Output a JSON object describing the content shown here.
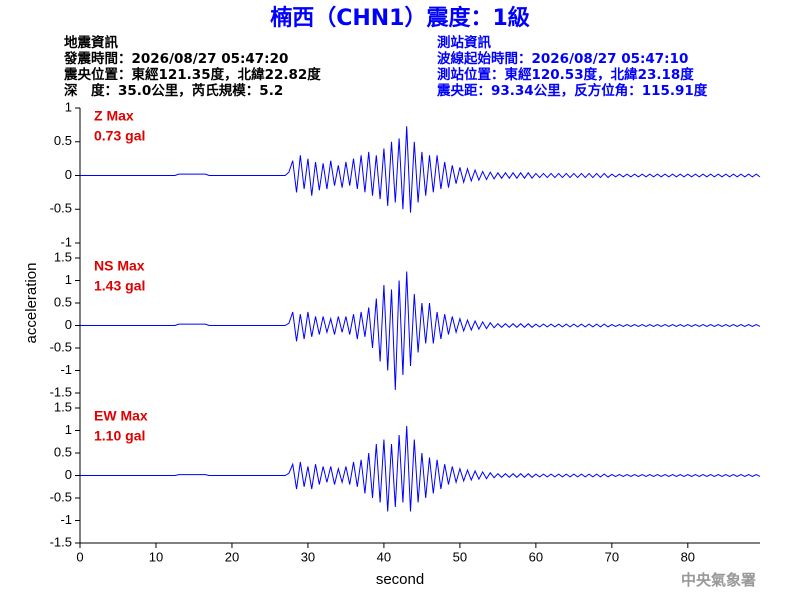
{
  "header": {
    "title": "楠西（CHN1）震度：1級",
    "event_info": [
      "地震資訊",
      "發震時間：2026/08/27 05:47:20",
      "震央位置：東經121.35度，北緯22.82度",
      "深　度：35.0公里，芮氏規模：5.2"
    ],
    "station_info": [
      "測站資訊",
      "波線起始時間：2026/08/27 05:47:10",
      "測站位置：東經120.53度，北緯23.18度",
      "震央距：93.34公里，反方位角：115.91度"
    ],
    "footer": "中央氣象署"
  },
  "chart_data": [
    {
      "type": "line",
      "annotations": [
        "Z Max",
        "0.73 gal"
      ],
      "color": "#0000ff",
      "xlim": [
        0,
        89.5
      ],
      "ylim": [
        -1,
        1
      ],
      "yticks": [
        -1,
        -0.5,
        0,
        0.5,
        1
      ],
      "x": [
        0,
        0.5,
        1,
        1.5,
        2,
        2.5,
        3,
        3.5,
        4,
        4.5,
        5,
        5.5,
        6,
        6.5,
        7,
        7.5,
        8,
        8.5,
        9,
        9.5,
        10,
        10.5,
        11,
        11.5,
        12,
        12.5,
        13,
        13.5,
        14,
        14.5,
        15,
        15.5,
        16,
        16.5,
        17,
        17.5,
        18,
        18.5,
        19,
        19.5,
        20,
        20.5,
        21,
        21.5,
        22,
        22.5,
        23,
        23.5,
        24,
        24.5,
        25,
        25.5,
        26,
        26.5,
        27,
        27.5,
        28,
        28.5,
        29,
        29.5,
        30,
        30.5,
        31,
        31.5,
        32,
        32.5,
        33,
        33.5,
        34,
        34.5,
        35,
        35.5,
        36,
        36.5,
        37,
        37.5,
        38,
        38.5,
        39,
        39.5,
        40,
        40.5,
        41,
        41.5,
        42,
        42.5,
        43,
        43.5,
        44,
        44.5,
        45,
        45.5,
        46,
        46.5,
        47,
        47.5,
        48,
        48.5,
        49,
        49.5,
        50,
        50.5,
        51,
        51.5,
        52,
        52.5,
        53,
        53.5,
        54,
        54.5,
        55,
        55.5,
        56,
        56.5,
        57,
        57.5,
        58,
        58.5,
        59,
        59.5,
        60,
        60.5,
        61,
        61.5,
        62,
        62.5,
        63,
        63.5,
        64,
        64.5,
        65,
        65.5,
        66,
        66.5,
        67,
        67.5,
        68,
        68.5,
        69,
        69.5,
        70,
        70.5,
        71,
        71.5,
        72,
        72.5,
        73,
        73.5,
        74,
        74.5,
        75,
        75.5,
        76,
        76.5,
        77,
        77.5,
        78,
        78.5,
        79,
        79.5,
        80,
        80.5,
        81,
        81.5,
        82,
        82.5,
        83,
        83.5,
        84,
        84.5,
        85,
        85.5,
        86,
        86.5,
        87,
        87.5,
        88,
        88.5,
        89,
        89.5
      ],
      "values": [
        0,
        0,
        0,
        0,
        0,
        0,
        0,
        0,
        0,
        0,
        0,
        0,
        0,
        0,
        0,
        0,
        0,
        0,
        0,
        0,
        0,
        0,
        0,
        0,
        0,
        0,
        0.02,
        0.02,
        0.02,
        0.02,
        0.02,
        0.02,
        0.02,
        0.02,
        0,
        0,
        0,
        0,
        0,
        0,
        0,
        0,
        0,
        0,
        0,
        0,
        0,
        0,
        0,
        0,
        0,
        0,
        0,
        0,
        0,
        0.05,
        0.22,
        -0.25,
        0.3,
        -0.2,
        0.25,
        -0.3,
        0.2,
        -0.22,
        0.18,
        -0.2,
        0.22,
        -0.15,
        0.15,
        -0.18,
        0.2,
        -0.15,
        0.25,
        -0.2,
        0.3,
        -0.25,
        0.35,
        -0.3,
        0.3,
        -0.35,
        0.4,
        -0.45,
        0.5,
        -0.4,
        0.55,
        -0.5,
        0.73,
        -0.55,
        0.5,
        -0.4,
        0.35,
        -0.3,
        0.3,
        -0.25,
        0.3,
        -0.2,
        0.2,
        -0.18,
        0.15,
        -0.12,
        0.12,
        -0.1,
        0.1,
        -0.08,
        0.08,
        -0.07,
        0.06,
        -0.06,
        0.05,
        -0.05,
        0.04,
        -0.04,
        0.04,
        -0.04,
        0.04,
        -0.04,
        0.04,
        -0.04,
        0.04,
        -0.04,
        0.03,
        -0.03,
        0.03,
        -0.03,
        0.03,
        -0.03,
        0.03,
        -0.03,
        0.03,
        -0.03,
        0.03,
        -0.03,
        0.03,
        -0.03,
        0.03,
        -0.03,
        0.03,
        -0.03,
        0.03,
        -0.03,
        0.02,
        -0.02,
        0.02,
        -0.02,
        0.02,
        -0.02,
        0.02,
        -0.02,
        0.02,
        -0.02,
        0.02,
        -0.02,
        0.02,
        -0.02,
        0.02,
        -0.02,
        0.02,
        -0.02,
        0.02,
        -0.02,
        0.02,
        -0.02,
        0.02,
        -0.02,
        0.02,
        -0.02,
        0.02,
        -0.02,
        0.02,
        -0.02,
        0.02,
        -0.02,
        0.02,
        -0.02,
        0.02,
        -0.02,
        0.02,
        -0.02,
        0.02,
        -0.02
      ]
    },
    {
      "type": "line",
      "annotations": [
        "NS Max",
        "1.43 gal"
      ],
      "ylabel": "acceleration",
      "color": "#0000ff",
      "xlim": [
        0,
        89.5
      ],
      "ylim": [
        -1.5,
        1.5
      ],
      "yticks": [
        -1.5,
        -1,
        -0.5,
        0,
        0.5,
        1,
        1.5
      ],
      "values": [
        0,
        0,
        0,
        0,
        0,
        0,
        0,
        0,
        0,
        0,
        0,
        0,
        0,
        0,
        0,
        0,
        0,
        0,
        0,
        0,
        0,
        0,
        0,
        0,
        0,
        0,
        0.03,
        0.03,
        0.03,
        0.03,
        0.03,
        0.03,
        0.03,
        0.03,
        0,
        0,
        0,
        0,
        0,
        0,
        0,
        0,
        0,
        0,
        0,
        0,
        0,
        0,
        0,
        0,
        0,
        0,
        0,
        0,
        0,
        0.05,
        0.3,
        -0.35,
        0.25,
        -0.3,
        0.3,
        -0.25,
        0.2,
        -0.2,
        0.2,
        -0.15,
        0.15,
        -0.2,
        0.2,
        -0.15,
        0.2,
        -0.2,
        0.25,
        -0.3,
        0.3,
        -0.25,
        0.4,
        -0.5,
        0.6,
        -0.8,
        0.9,
        -1.0,
        0.8,
        -1.43,
        1.0,
        -1.1,
        1.2,
        -0.9,
        0.7,
        -0.6,
        0.5,
        -0.4,
        0.5,
        -0.4,
        0.3,
        -0.3,
        0.25,
        -0.2,
        0.2,
        -0.15,
        0.15,
        -0.12,
        0.12,
        -0.1,
        0.1,
        -0.08,
        0.08,
        -0.07,
        0.06,
        -0.05,
        0.04,
        -0.04,
        0.04,
        -0.04,
        0.04,
        -0.04,
        0.04,
        -0.04,
        0.04,
        -0.04,
        0.03,
        -0.03,
        0.03,
        -0.03,
        0.03,
        -0.03,
        0.03,
        -0.03,
        0.03,
        -0.03,
        0.03,
        -0.03,
        0.03,
        -0.03,
        0.03,
        -0.03,
        0.03,
        -0.03,
        0.03,
        -0.03,
        0.02,
        -0.02,
        0.02,
        -0.02,
        0.02,
        -0.02,
        0.02,
        -0.02,
        0.02,
        -0.02,
        0.02,
        -0.02,
        0.02,
        -0.02,
        0.02,
        -0.02,
        0.02,
        -0.02,
        0.02,
        -0.02,
        0.02,
        -0.02,
        0.02,
        -0.02,
        0.02,
        -0.02,
        0.02,
        -0.02,
        0.02,
        -0.02,
        0.02,
        -0.02,
        0.02,
        -0.02,
        0.02,
        -0.02,
        0.02,
        -0.02,
        0.02,
        -0.02
      ]
    },
    {
      "type": "line",
      "annotations": [
        "EW Max",
        "1.10 gal"
      ],
      "xlabel": "second",
      "color": "#0000ff",
      "xlim": [
        0,
        89.5
      ],
      "xticks": [
        0,
        10,
        20,
        30,
        40,
        50,
        60,
        70,
        80
      ],
      "ylim": [
        -1.5,
        1.5
      ],
      "yticks": [
        -1.5,
        -1,
        -0.5,
        0,
        0.5,
        1,
        1.5
      ],
      "values": [
        0,
        0,
        0,
        0,
        0,
        0,
        0,
        0,
        0,
        0,
        0,
        0,
        0,
        0,
        0,
        0,
        0,
        0,
        0,
        0,
        0,
        0,
        0,
        0,
        0,
        0,
        0.02,
        0.02,
        0.02,
        0.02,
        0.02,
        0.02,
        0.02,
        0.02,
        0,
        0,
        0,
        0,
        0,
        0,
        0,
        0,
        0,
        0,
        0,
        0,
        0,
        0,
        0,
        0,
        0,
        0,
        0,
        0,
        0,
        0.05,
        0.25,
        -0.3,
        0.3,
        -0.25,
        0.2,
        -0.3,
        0.25,
        -0.2,
        0.2,
        -0.15,
        0.2,
        -0.2,
        0.15,
        -0.15,
        0.2,
        -0.2,
        0.3,
        -0.25,
        0.35,
        -0.4,
        0.5,
        -0.5,
        0.7,
        -0.6,
        0.8,
        -0.8,
        0.7,
        -0.7,
        0.9,
        -0.6,
        1.1,
        -0.8,
        0.8,
        -0.6,
        0.5,
        -0.5,
        0.4,
        -0.4,
        0.35,
        -0.3,
        0.25,
        -0.2,
        0.2,
        -0.15,
        0.15,
        -0.12,
        0.12,
        -0.1,
        0.1,
        -0.08,
        0.08,
        -0.07,
        0.06,
        -0.05,
        0.04,
        -0.04,
        0.04,
        -0.04,
        0.04,
        -0.04,
        0.04,
        -0.04,
        0.04,
        -0.04,
        0.03,
        -0.03,
        0.03,
        -0.03,
        0.03,
        -0.03,
        0.03,
        -0.03,
        0.03,
        -0.03,
        0.03,
        -0.03,
        0.03,
        -0.03,
        0.03,
        -0.03,
        0.03,
        -0.03,
        0.03,
        -0.03,
        0.02,
        -0.02,
        0.02,
        -0.02,
        0.02,
        -0.02,
        0.02,
        -0.02,
        0.02,
        -0.02,
        0.02,
        -0.02,
        0.02,
        -0.02,
        0.02,
        -0.02,
        0.02,
        -0.02,
        0.02,
        -0.02,
        0.02,
        -0.02,
        0.02,
        -0.02,
        0.02,
        -0.02,
        0.02,
        -0.02,
        0.02,
        -0.02,
        0.02,
        -0.02,
        0.02,
        -0.02,
        0.02,
        -0.02,
        0.02,
        -0.02,
        0.02,
        -0.02
      ]
    }
  ]
}
